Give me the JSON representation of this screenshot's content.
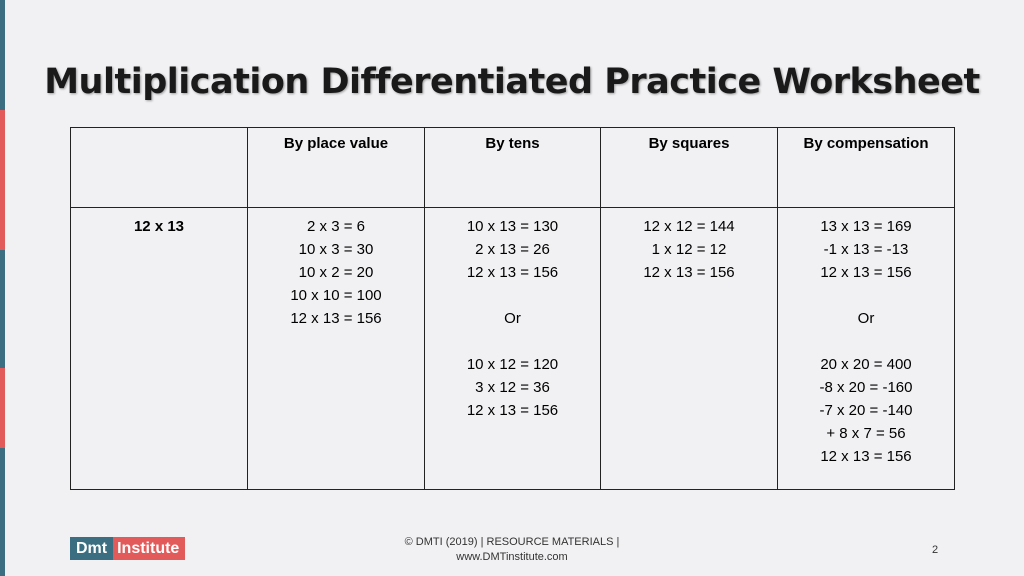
{
  "title": "Multiplication Differentiated Practice Worksheet",
  "table": {
    "corner": "",
    "headers": [
      "By place value",
      "By tens",
      "By squares",
      "By compensation"
    ],
    "row_label": "12 x 13",
    "columns": [
      [
        "2 x 3 = 6",
        "10 x 3 = 30",
        "10 x 2 = 20",
        "10 x 10 = 100",
        "12 x 13 = 156"
      ],
      [
        "10 x 13 = 130",
        "2 x 13 = 26",
        "12 x 13 = 156",
        "",
        "Or",
        "",
        "10 x 12 = 120",
        "3 x 12 = 36",
        "12 x 13 = 156"
      ],
      [
        "12 x 12 = 144",
        "1 x 12 = 12",
        "12 x 13 = 156"
      ],
      [
        "13 x 13 = 169",
        "-1 x 13 = -13",
        "12 x 13 = 156",
        "",
        "Or",
        "",
        "20 x 20 = 400",
        "-8 x 20 = -160",
        "-7 x 20 = -140",
        "+ 8 x 7 = 56",
        "12 x 13 = 156"
      ]
    ]
  },
  "logo": {
    "part1": "Dmt",
    "part2": "Institute"
  },
  "footer": {
    "line1": "© DMTI (2019) | RESOURCE MATERIALS |",
    "line2": "www.DMTinstitute.com"
  },
  "page_number": "2",
  "colors": {
    "accent_teal": "#3b6e80",
    "accent_red": "#e35a5a",
    "background": "#f1f1f3"
  }
}
